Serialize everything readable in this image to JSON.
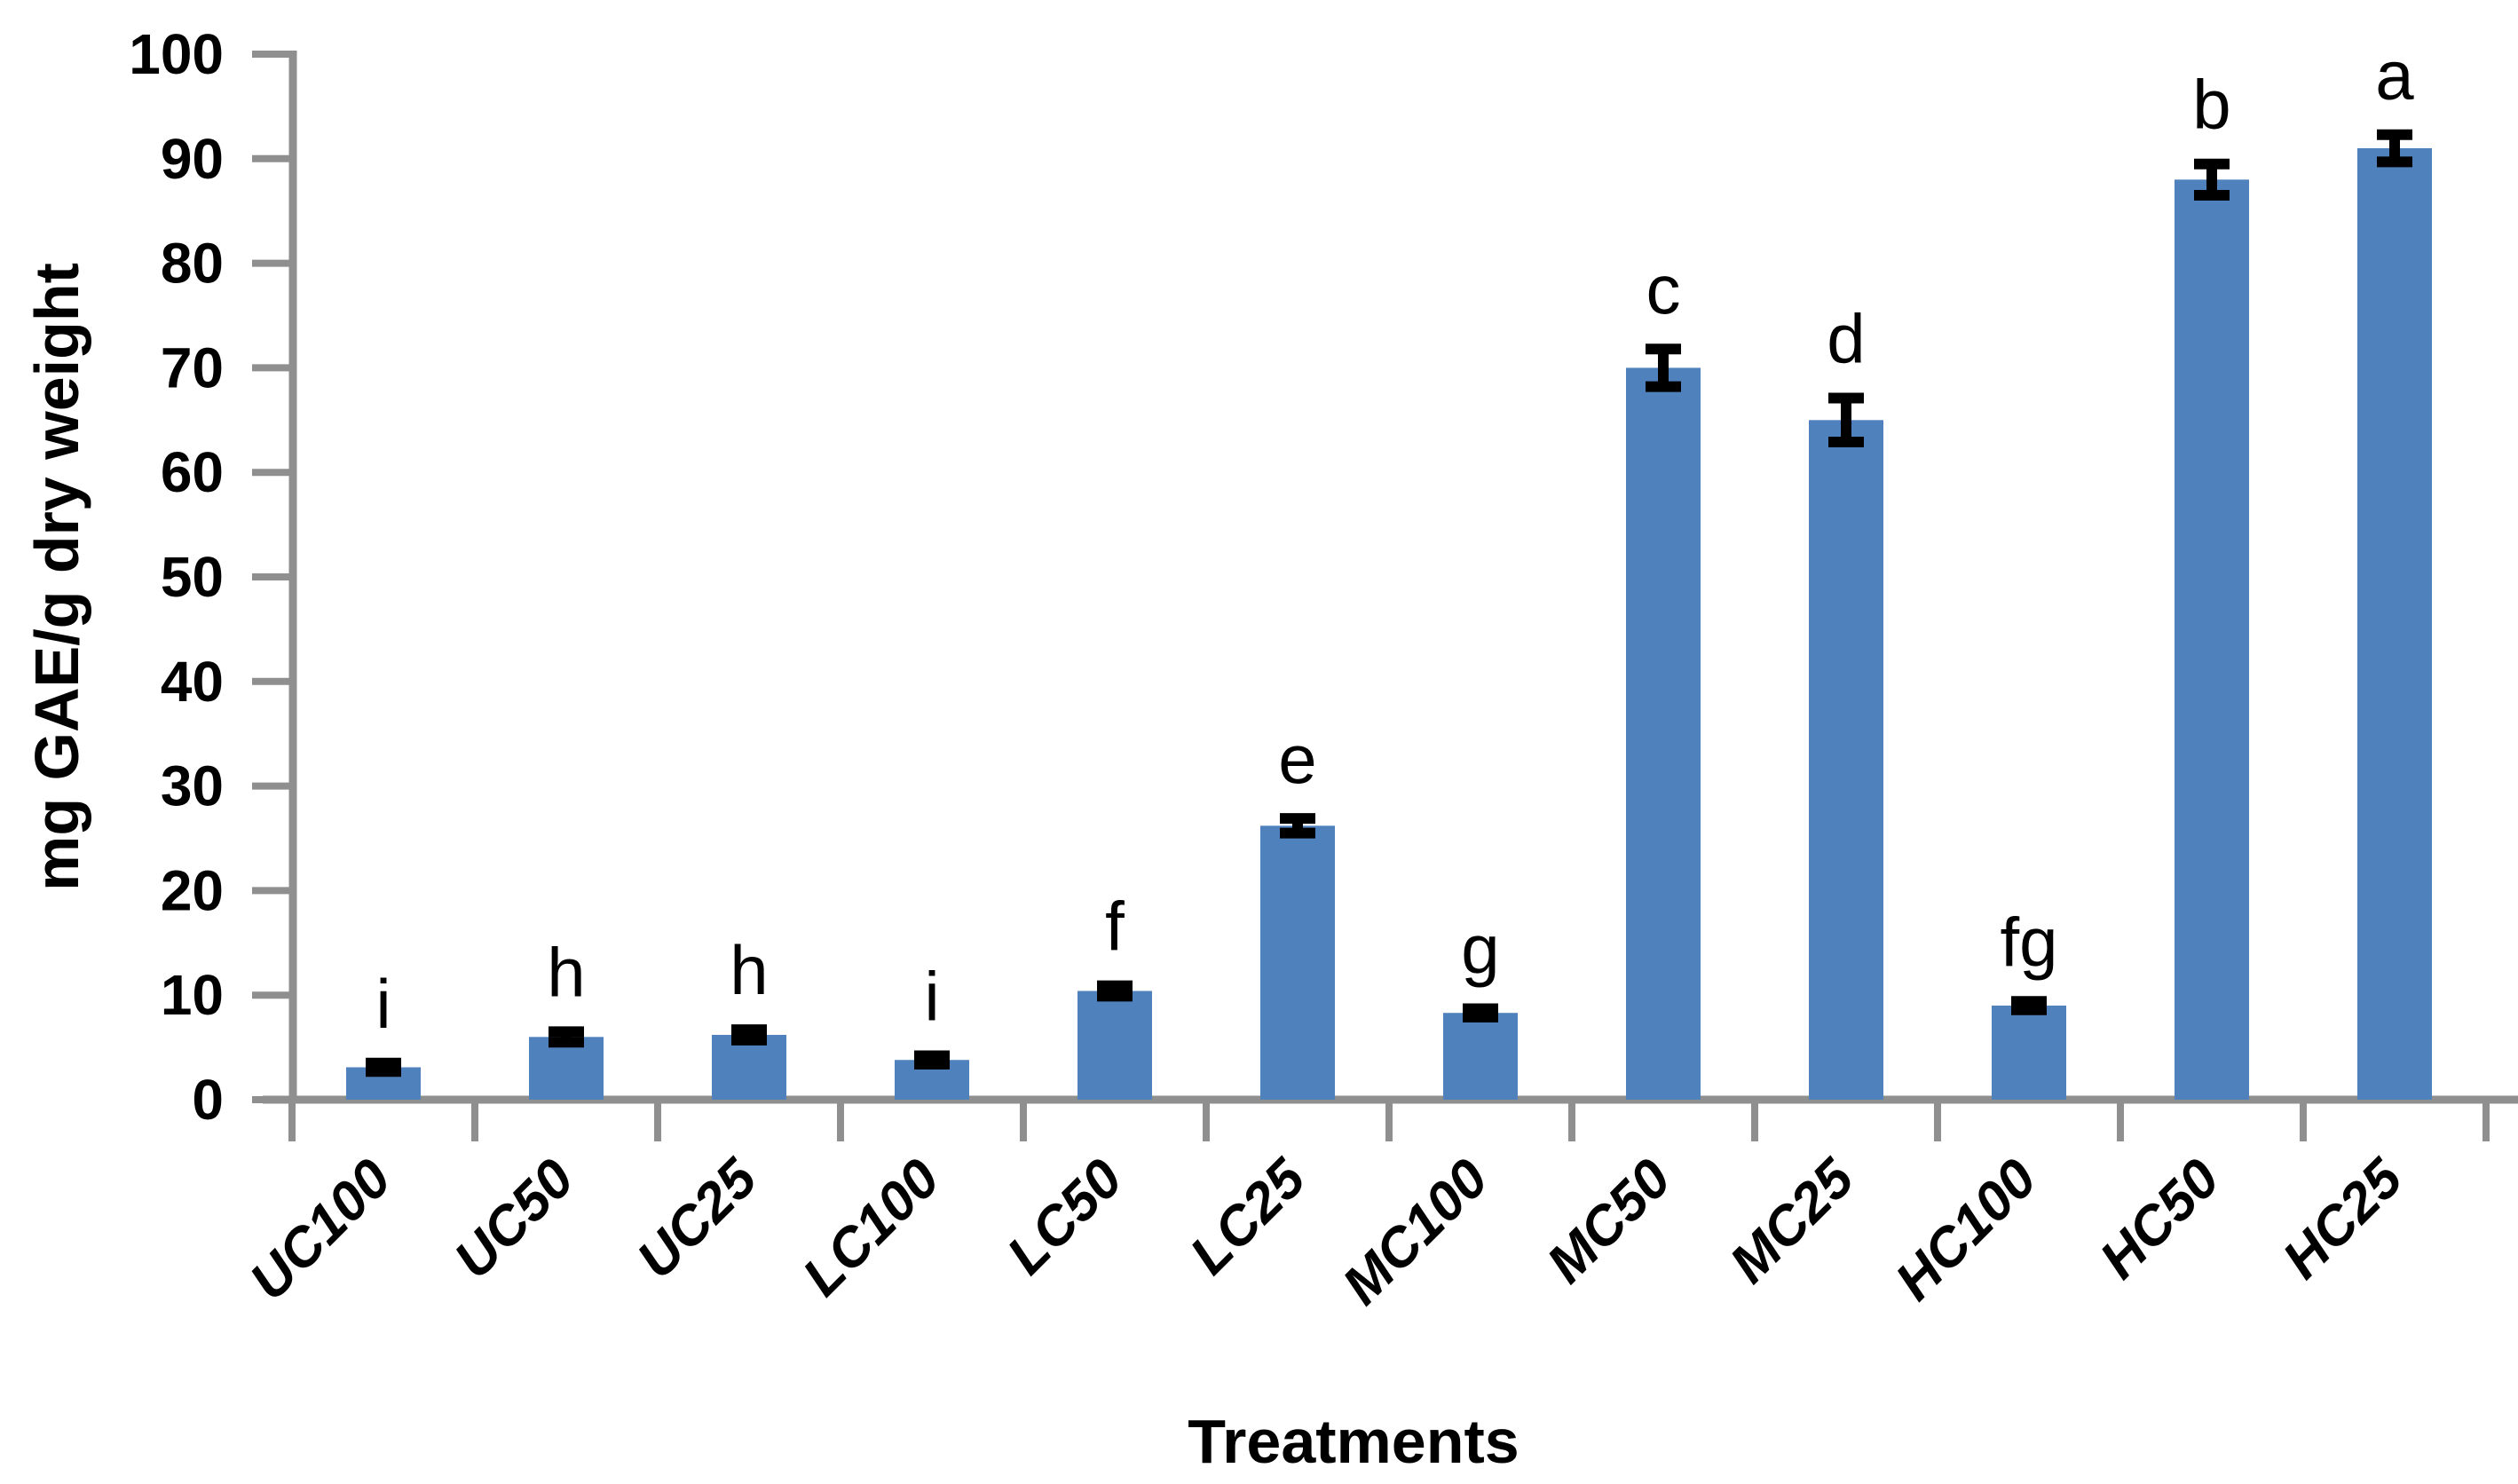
{
  "figure": {
    "background_color": "#ffffff"
  },
  "chart_data": {
    "type": "bar",
    "title": "",
    "xlabel": "Treatments",
    "ylabel": "mg GAE/g dry weight",
    "categories": [
      "UC100",
      "UC50",
      "UC25",
      "LC100",
      "LC50",
      "LC25",
      "MC100",
      "MC50",
      "MC25",
      "HC100",
      "HC50",
      "HC25"
    ],
    "values": [
      3.1,
      6.0,
      6.2,
      3.8,
      10.4,
      26.2,
      8.3,
      70,
      65,
      9.0,
      88,
      91
    ],
    "error_bars": [
      0.4,
      0.5,
      0.5,
      0.4,
      0.5,
      0.7,
      0.4,
      1.8,
      2.1,
      0.4,
      1.5,
      1.3
    ],
    "significance_letters": [
      "i",
      "h",
      "h",
      "i",
      "f",
      "e",
      "g",
      "c",
      "d",
      "fg",
      "b",
      "a"
    ],
    "ylim": [
      0,
      100
    ],
    "ytick_interval": 10,
    "ytick_labels": [
      "0",
      "10",
      "20",
      "30",
      "40",
      "50",
      "60",
      "70",
      "80",
      "90",
      "100"
    ],
    "grid": false,
    "legend": null,
    "bar_color": "#4F81BD",
    "axis_color": "#8F8F8F",
    "error_bar_color": "#000000",
    "text_color": "#000000"
  }
}
